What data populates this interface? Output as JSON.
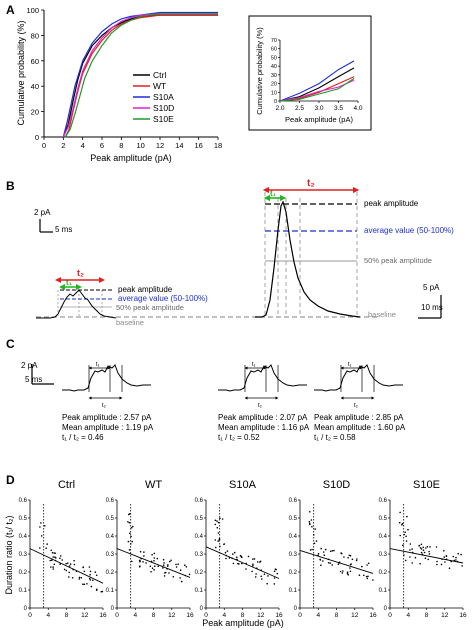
{
  "panels": {
    "A": {
      "letter": "A",
      "main": {
        "ylabel": "Cumulative probability (%)",
        "xlabel": "Peak amplitude (pA)",
        "xticks": [
          "0",
          "2",
          "4",
          "6",
          "8",
          "10",
          "12",
          "14",
          "16",
          "18"
        ],
        "yticks": [
          "0",
          "20",
          "40",
          "60",
          "80",
          "100"
        ],
        "legend": [
          "Ctrl",
          "WT",
          "S10A",
          "S10D",
          "S10E"
        ]
      },
      "inset": {
        "ylabel": "Cumulative probability (%)",
        "xlabel": "Peak amplitude (pA)",
        "xticks": [
          "2.0",
          "2.5",
          "3.0",
          "3.5",
          "4.0"
        ],
        "yticks": [
          "0",
          "10",
          "20",
          "30",
          "40",
          "50",
          "60",
          "70"
        ]
      }
    },
    "B": {
      "letter": "B",
      "scale_left": {
        "amp": "2 pA",
        "time": "5 ms"
      },
      "scale_right": {
        "amp": "5 pA",
        "time": "10 ms"
      },
      "t1": "t₁",
      "t2": "t₂",
      "label_peak": "peak amplitude",
      "label_avg": "average value (50-100%)",
      "label_50": "50% peak amplitude",
      "label_baseline": "baseline"
    },
    "C": {
      "letter": "C",
      "scale": {
        "amp": "2 pA",
        "time": "5 ms"
      },
      "t1": "t₁",
      "t2": "t₂",
      "events": [
        {
          "peak": "Peak amplitude : 2.57 pA",
          "mean": "Mean amplitude : 1.19 pA",
          "ratio": "t₁ / t₂ = 0.46"
        },
        {
          "peak": "Peak amplitude : 2.07 pA",
          "mean": "Mean amplitude : 1.16 pA",
          "ratio": "t₁ / t₂ = 0.52"
        },
        {
          "peak": "Peak amplitude : 2.85 pA",
          "mean": "Mean amplitude : 1.60 pA",
          "ratio": "t₁ / t₂ = 0.58"
        }
      ]
    },
    "D": {
      "letter": "D",
      "ylabel": "Duration ratio (t₁/ t₂)",
      "xlabel": "Peak amplitude (pA)",
      "xticks": [
        "0",
        "4",
        "8",
        "12",
        "16"
      ],
      "yticks": [
        "0",
        "0.1",
        "0.2",
        "0.3",
        "0.4",
        "0.5",
        "0.6"
      ],
      "titles": [
        "Ctrl",
        "WT",
        "S10A",
        "S10D",
        "S10E"
      ]
    }
  },
  "colors": {
    "ctrl": "#000000",
    "wt": "#e0201b",
    "s10a": "#1f2fd6",
    "s10d": "#e020d0",
    "s10e": "#1f9a2a",
    "green_arrow": "#22b422",
    "red_arrow": "#e02020",
    "avg_blue": "#1f2fd6",
    "gray": "#8a8a8a"
  },
  "chart_data": [
    {
      "type": "line",
      "panel": "A",
      "xlabel": "Peak amplitude (pA)",
      "ylabel": "Cumulative probability (%)",
      "xlim": [
        0,
        18
      ],
      "ylim": [
        0,
        100
      ],
      "legend_position": "center-right",
      "series": [
        {
          "name": "Ctrl",
          "color": "#000000",
          "x": [
            2,
            2.5,
            3,
            3.5,
            4,
            5,
            6,
            7,
            8,
            9,
            10,
            12,
            18
          ],
          "y": [
            0,
            10,
            28,
            45,
            58,
            72,
            80,
            86,
            90,
            93,
            95,
            96,
            96
          ]
        },
        {
          "name": "WT",
          "color": "#e0201b",
          "x": [
            2.2,
            2.6,
            3,
            3.5,
            4,
            5,
            6,
            7,
            8,
            9,
            10,
            12,
            18
          ],
          "y": [
            0,
            6,
            20,
            36,
            50,
            66,
            76,
            84,
            89,
            92,
            94,
            96,
            96
          ]
        },
        {
          "name": "S10A",
          "color": "#1f2fd6",
          "x": [
            2,
            2.4,
            2.8,
            3.2,
            3.6,
            4,
            5,
            6,
            7,
            8,
            9,
            12,
            18
          ],
          "y": [
            0,
            12,
            26,
            40,
            50,
            60,
            74,
            83,
            89,
            93,
            95,
            98,
            98
          ]
        },
        {
          "name": "S10D",
          "color": "#e020d0",
          "x": [
            2,
            2.5,
            3,
            3.5,
            4,
            5,
            6,
            7,
            8,
            9,
            10,
            12,
            18
          ],
          "y": [
            0,
            8,
            22,
            38,
            52,
            68,
            78,
            86,
            91,
            94,
            96,
            97,
            97
          ]
        },
        {
          "name": "S10E",
          "color": "#1f9a2a",
          "x": [
            2.2,
            2.7,
            3.2,
            3.7,
            4.2,
            5,
            6,
            7,
            8,
            9,
            10,
            12,
            18
          ],
          "y": [
            0,
            6,
            18,
            32,
            46,
            60,
            72,
            82,
            88,
            92,
            95,
            97,
            97
          ]
        }
      ]
    },
    {
      "type": "line",
      "panel": "A-inset",
      "xlabel": "Peak amplitude (pA)",
      "ylabel": "Cumulative probability (%)",
      "xlim": [
        2.0,
        4.0
      ],
      "ylim": [
        0,
        70
      ],
      "series": [
        {
          "name": "Ctrl",
          "color": "#000000",
          "x": [
            2.0,
            2.5,
            3.0,
            3.5,
            3.9
          ],
          "y": [
            0,
            5,
            15,
            28,
            38
          ]
        },
        {
          "name": "WT",
          "color": "#e0201b",
          "x": [
            2.0,
            2.5,
            3.0,
            3.5,
            3.9
          ],
          "y": [
            0,
            3,
            10,
            20,
            28
          ]
        },
        {
          "name": "S10A",
          "color": "#1f2fd6",
          "x": [
            2.0,
            2.5,
            3.0,
            3.5,
            3.9
          ],
          "y": [
            0,
            9,
            20,
            36,
            46
          ]
        },
        {
          "name": "S10D",
          "color": "#e020d0",
          "x": [
            2.0,
            2.5,
            3.0,
            3.5,
            3.9
          ],
          "y": [
            0,
            4,
            11,
            16,
            24
          ]
        },
        {
          "name": "S10E",
          "color": "#1f9a2a",
          "x": [
            2.0,
            2.5,
            3.0,
            3.5,
            3.9
          ],
          "y": [
            0,
            2,
            8,
            14,
            26
          ]
        }
      ]
    },
    {
      "type": "scatter",
      "panel": "D",
      "xlabel": "Peak amplitude (pA)",
      "ylabel": "Duration ratio (t₁/ t₂)",
      "xlim": [
        0,
        16
      ],
      "ylim": [
        0,
        0.6
      ],
      "groups": [
        {
          "title": "Ctrl",
          "fit": [
            0.33,
            -0.012
          ],
          "seed": 11
        },
        {
          "title": "WT",
          "fit": [
            0.33,
            -0.01
          ],
          "seed": 23
        },
        {
          "title": "S10A",
          "fit": [
            0.34,
            -0.011
          ],
          "seed": 37
        },
        {
          "title": "S10D",
          "fit": [
            0.32,
            -0.008
          ],
          "seed": 51
        },
        {
          "title": "S10E",
          "fit": [
            0.33,
            -0.005
          ],
          "seed": 73
        }
      ]
    }
  ]
}
